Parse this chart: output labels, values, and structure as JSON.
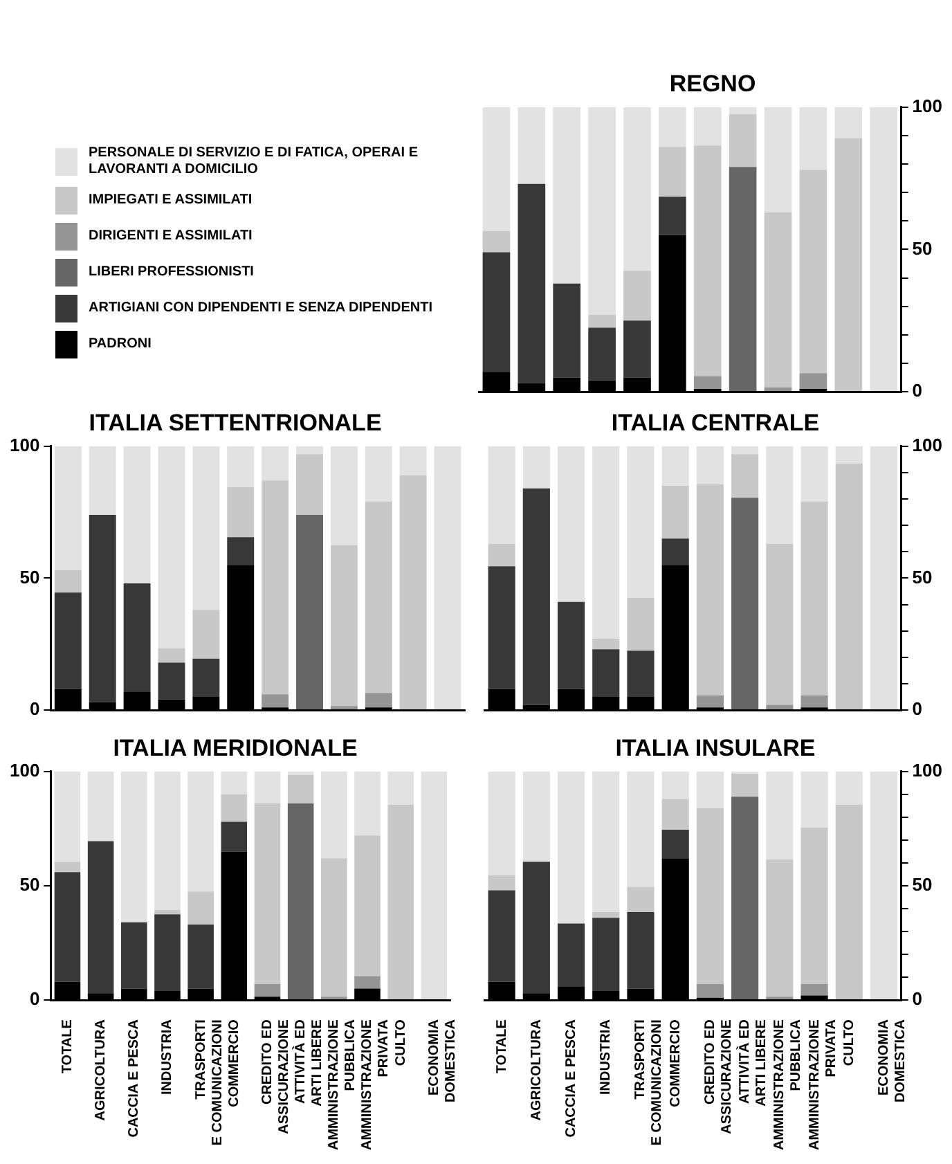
{
  "chart_data": [
    {
      "type": "bar",
      "title": "REGNO",
      "stacked": true,
      "legend": "left",
      "tick_labels": "y",
      "categories": [
        null,
        null,
        null,
        null,
        null,
        null,
        null,
        null,
        null,
        null,
        null,
        null
      ],
      "ylim": [
        0,
        100
      ],
      "yticks": [
        0,
        {
          "value": 10,
          "label": null
        },
        {
          "value": 20,
          "label": null
        },
        {
          "value": 30,
          "label": null
        },
        {
          "value": 40,
          "label": null
        },
        50,
        {
          "value": 60,
          "label": null
        },
        {
          "value": 70,
          "label": null
        },
        {
          "value": 80,
          "label": null
        },
        {
          "value": 90,
          "label": null
        },
        100
      ],
      "series": [
        {
          "name": "PADRONI",
          "color": "#000000",
          "values": [
            7,
            3,
            5,
            4,
            5,
            55,
            1,
            0,
            0,
            1,
            0,
            0
          ]
        },
        {
          "name": "ARTIGIANI CON DIPENDENTI E SENZA DIPENDENTI",
          "color": "#383838",
          "values": [
            42,
            70,
            33,
            18.5,
            20,
            13.5,
            0,
            0,
            0,
            0,
            0,
            0
          ]
        },
        {
          "name": "LIBERI PROFESSIONISTI",
          "color": "#666666",
          "values": [
            0,
            0,
            0,
            0,
            0,
            0,
            0,
            79,
            0,
            0,
            0,
            0
          ]
        },
        {
          "name": "DIRIGENTI E ASSIMILATI",
          "color": "#959595",
          "values": [
            0,
            0,
            0,
            0,
            0,
            0,
            4.5,
            0,
            1.5,
            5.5,
            0,
            0
          ]
        },
        {
          "name": "IMPIEGATI E ASSIMILATI",
          "color": "#c8c8c8",
          "values": [
            7.5,
            0,
            0,
            4.5,
            17.5,
            17.5,
            81,
            18.5,
            61.5,
            71.5,
            89,
            0
          ]
        },
        {
          "name": "PERSONALE DI SERVIZIO E DI FATICA, OPERAI E LAVORANTI A DOMICILIO",
          "color": "#e2e2e2",
          "values": [
            43.5,
            27,
            62,
            73,
            57.5,
            14,
            13.5,
            2.5,
            37,
            22,
            11,
            100
          ]
        }
      ]
    },
    {
      "type": "bar",
      "title": "ITALIA SETTENTRIONALE",
      "stacked": true,
      "tick_labels": "y",
      "categories": [
        null,
        null,
        null,
        null,
        null,
        null,
        null,
        null,
        null,
        null,
        null,
        null
      ],
      "ylim": [
        0,
        100
      ],
      "yticks": [
        0,
        50,
        100
      ],
      "series": [
        {
          "color": "#000000",
          "values": [
            8,
            3,
            7,
            4,
            5,
            55,
            1,
            0,
            0,
            1,
            0,
            0
          ]
        },
        {
          "color": "#383838",
          "values": [
            36.5,
            71,
            41,
            14,
            14.5,
            10.5,
            0,
            0,
            0,
            0,
            0,
            0
          ]
        },
        {
          "color": "#666666",
          "values": [
            0,
            0,
            0,
            0,
            0,
            0,
            0,
            74,
            0,
            0,
            0,
            0
          ]
        },
        {
          "color": "#959595",
          "values": [
            0,
            0,
            0,
            0,
            0,
            0,
            5,
            0,
            1.5,
            5.5,
            0,
            0
          ]
        },
        {
          "color": "#c8c8c8",
          "values": [
            8.5,
            0,
            0,
            5.5,
            18.5,
            19,
            81,
            23,
            61,
            72.5,
            89,
            0
          ]
        },
        {
          "color": "#e2e2e2",
          "values": [
            47,
            26,
            52,
            76.5,
            62,
            15.5,
            13,
            3,
            37.5,
            21,
            11,
            100
          ]
        }
      ]
    },
    {
      "type": "bar",
      "title": "ITALIA CENTRALE",
      "stacked": true,
      "tick_labels": "y",
      "categories": [
        null,
        null,
        null,
        null,
        null,
        null,
        null,
        null,
        null,
        null,
        null,
        null
      ],
      "ylim": [
        0,
        100
      ],
      "yticks": [
        0,
        {
          "value": 10,
          "label": null
        },
        {
          "value": 20,
          "label": null
        },
        {
          "value": 30,
          "label": null
        },
        {
          "value": 40,
          "label": null
        },
        50,
        {
          "value": 60,
          "label": null
        },
        {
          "value": 70,
          "label": null
        },
        {
          "value": 80,
          "label": null
        },
        {
          "value": 90,
          "label": null
        },
        100
      ],
      "series": [
        {
          "color": "#000000",
          "values": [
            8,
            2,
            8,
            5,
            5,
            55,
            1,
            0,
            0,
            1,
            0,
            0
          ]
        },
        {
          "color": "#383838",
          "values": [
            46.5,
            82,
            33,
            18,
            17.5,
            10,
            0,
            0,
            0,
            0,
            0,
            0
          ]
        },
        {
          "color": "#666666",
          "values": [
            0,
            0,
            0,
            0,
            0,
            0,
            0,
            80.5,
            0,
            0,
            0,
            0
          ]
        },
        {
          "color": "#959595",
          "values": [
            0,
            0,
            0,
            0,
            0,
            0,
            4.5,
            0,
            2,
            4.5,
            0,
            0
          ]
        },
        {
          "color": "#c8c8c8",
          "values": [
            8.5,
            0,
            0,
            4,
            20,
            20,
            80,
            16.5,
            61,
            73.5,
            93.5,
            0
          ]
        },
        {
          "color": "#e2e2e2",
          "values": [
            37,
            16,
            59,
            73,
            57.5,
            15,
            14.5,
            3,
            37,
            21,
            6.5,
            100
          ]
        }
      ]
    },
    {
      "type": "bar",
      "title": "ITALIA MERIDIONALE",
      "stacked": true,
      "categories": [
        "TOTALE",
        "AGRICOLTURA",
        "CACCIA E PESCA",
        "INDUSTRIA",
        "TRASPORTI\nE COMUNICAZIONI",
        "COMMERCIO",
        "CREDITO ED\nASSICURAZIONE",
        "ATTIVITÀ ED\nARTI LIBERE",
        "AMMINISTRAZIONE\nPUBBLICA",
        "AMMINISTRAZIONE\nPRIVATA",
        "CULTO",
        "ECONOMIA\nDOMESTICA"
      ],
      "ylim": [
        0,
        100
      ],
      "yticks": [
        0,
        50,
        100
      ],
      "series": [
        {
          "color": "#000000",
          "values": [
            8,
            3,
            5,
            4,
            5,
            65,
            1.5,
            0,
            0,
            5,
            0,
            0
          ]
        },
        {
          "color": "#383838",
          "values": [
            48,
            66.5,
            29,
            33.5,
            28,
            13,
            0,
            0,
            0,
            0,
            0,
            0
          ]
        },
        {
          "color": "#666666",
          "values": [
            0,
            0,
            0,
            0,
            0,
            0,
            0,
            86,
            0,
            0,
            0,
            0
          ]
        },
        {
          "color": "#959595",
          "values": [
            0,
            0,
            0,
            0,
            0,
            0,
            5.5,
            0,
            1.5,
            5.5,
            0,
            0
          ]
        },
        {
          "color": "#c8c8c8",
          "values": [
            4.5,
            0,
            0,
            2,
            14.5,
            12,
            79,
            12.5,
            60.5,
            61.5,
            85.5,
            0
          ]
        },
        {
          "color": "#e2e2e2",
          "values": [
            39.5,
            30.5,
            66,
            60.5,
            52.5,
            10,
            14,
            1.5,
            38,
            28,
            14.5,
            100
          ]
        }
      ]
    },
    {
      "type": "bar",
      "title": "ITALIA INSULARE",
      "stacked": true,
      "categories": [
        "TOTALE",
        "AGRICOLTURA",
        "CACCIA E PESCA",
        "INDUSTRIA",
        "TRASPORTI\nE COMUNICAZIONI",
        "COMMERCIO",
        "CREDITO ED\nASSICURAZIONE",
        "ATTIVITÀ ED\nARTI LIBERE",
        "AMMINISTRAZIONE\nPUBBLICA",
        "AMMINISTRAZIONE\nPRIVATA",
        "CULTO",
        "ECONOMIA\nDOMESTICA"
      ],
      "ylim": [
        0,
        100
      ],
      "yticks": [
        0,
        {
          "value": 10,
          "label": null
        },
        {
          "value": 20,
          "label": null
        },
        {
          "value": 30,
          "label": null
        },
        {
          "value": 40,
          "label": null
        },
        50,
        {
          "value": 60,
          "label": null
        },
        {
          "value": 70,
          "label": null
        },
        {
          "value": 80,
          "label": null
        },
        {
          "value": 90,
          "label": null
        },
        100
      ],
      "series": [
        {
          "color": "#000000",
          "values": [
            8,
            3,
            6,
            4,
            5,
            62,
            1,
            0,
            0,
            2,
            0,
            0
          ]
        },
        {
          "color": "#383838",
          "values": [
            40,
            57.5,
            27.5,
            32,
            33.5,
            12.5,
            0,
            0,
            0,
            0,
            0,
            0
          ]
        },
        {
          "color": "#666666",
          "values": [
            0,
            0,
            0,
            0,
            0,
            0,
            0,
            89,
            0,
            0,
            0,
            0
          ]
        },
        {
          "color": "#959595",
          "values": [
            0,
            0,
            0,
            0,
            0,
            0,
            6,
            0,
            1.5,
            5,
            0,
            0
          ]
        },
        {
          "color": "#c8c8c8",
          "values": [
            6.5,
            0,
            0,
            2.5,
            11,
            13.5,
            77,
            10,
            60,
            68.5,
            85.5,
            0
          ]
        },
        {
          "color": "#e2e2e2",
          "values": [
            45.5,
            39.5,
            66.5,
            61.5,
            50.5,
            12,
            16,
            1,
            38.5,
            24.5,
            14.5,
            100
          ]
        }
      ]
    }
  ]
}
